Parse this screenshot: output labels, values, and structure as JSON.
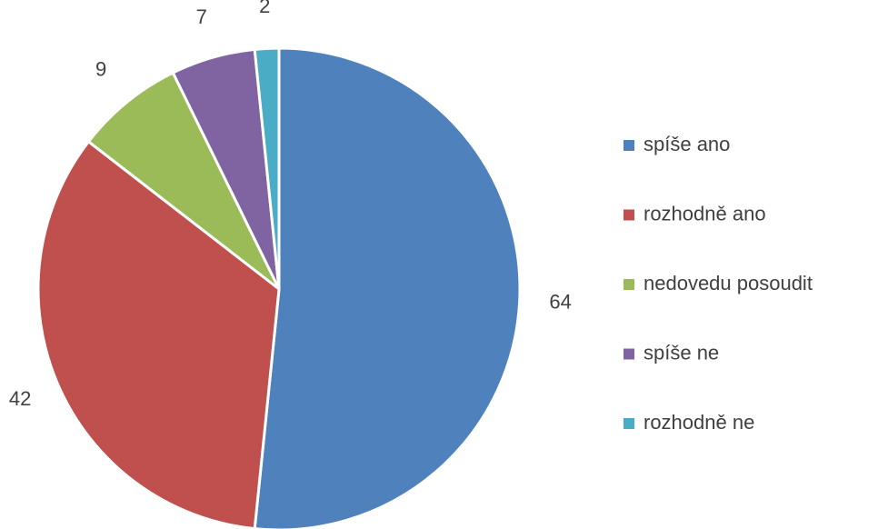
{
  "chart_data": {
    "type": "pie",
    "categories": [
      "spíše ano",
      "rozhodně ano",
      "nedovedu posoudit",
      "spíše ne",
      "rozhodně ne"
    ],
    "values": [
      64,
      42,
      9,
      7,
      2
    ],
    "colors": [
      "#4f81bd",
      "#c0504d",
      "#9bbb59",
      "#8064a2",
      "#4bacc6"
    ],
    "legend": "right"
  }
}
